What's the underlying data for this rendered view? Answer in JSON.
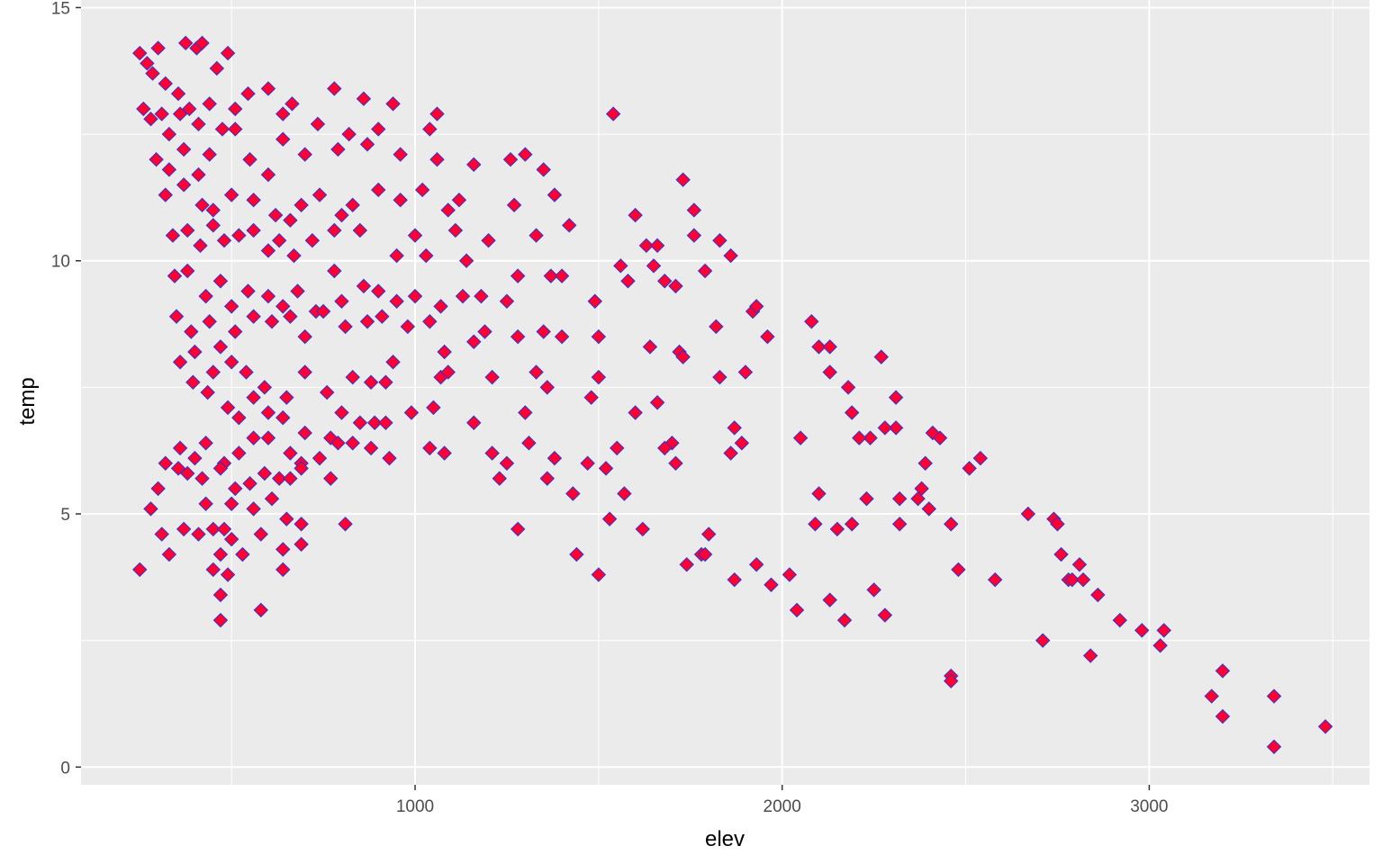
{
  "chart_data": {
    "type": "scatter",
    "title": "",
    "xlabel": "elev",
    "ylabel": "temp",
    "xlim": [
      90,
      3600
    ],
    "ylim": [
      -0.35,
      15.15
    ],
    "x_ticks": [
      1000,
      2000,
      3000
    ],
    "x_tick_labels": [
      "1000",
      "2000",
      "3000"
    ],
    "y_ticks": [
      0,
      5,
      10,
      15
    ],
    "y_tick_labels": [
      "0",
      "5",
      "10",
      "15"
    ],
    "grid": true,
    "legend": "none",
    "colors": {
      "panel": "#ebebeb",
      "grid": "#ffffff",
      "point_fill": "#ff0033",
      "point_stroke": "#3333cc",
      "tick": "#333333"
    },
    "marker": "diamond",
    "points": [
      [
        250,
        14.1
      ],
      [
        270,
        13.9
      ],
      [
        285,
        13.7
      ],
      [
        300,
        14.2
      ],
      [
        320,
        13.5
      ],
      [
        355,
        13.3
      ],
      [
        375,
        14.3
      ],
      [
        405,
        14.2
      ],
      [
        420,
        14.3
      ],
      [
        460,
        13.8
      ],
      [
        490,
        14.1
      ],
      [
        260,
        13.0
      ],
      [
        280,
        12.8
      ],
      [
        310,
        12.9
      ],
      [
        330,
        12.5
      ],
      [
        360,
        12.9
      ],
      [
        385,
        13.0
      ],
      [
        410,
        12.7
      ],
      [
        440,
        13.1
      ],
      [
        475,
        12.6
      ],
      [
        510,
        13.0
      ],
      [
        545,
        13.3
      ],
      [
        600,
        13.4
      ],
      [
        640,
        12.9
      ],
      [
        665,
        13.1
      ],
      [
        780,
        13.4
      ],
      [
        860,
        13.2
      ],
      [
        940,
        13.1
      ],
      [
        1060,
        12.9
      ],
      [
        1540,
        12.9
      ],
      [
        295,
        12.0
      ],
      [
        330,
        11.8
      ],
      [
        370,
        12.2
      ],
      [
        410,
        11.7
      ],
      [
        440,
        12.1
      ],
      [
        510,
        12.6
      ],
      [
        550,
        12.0
      ],
      [
        600,
        11.7
      ],
      [
        640,
        12.4
      ],
      [
        700,
        12.1
      ],
      [
        735,
        12.7
      ],
      [
        790,
        12.2
      ],
      [
        820,
        12.5
      ],
      [
        870,
        12.3
      ],
      [
        900,
        12.6
      ],
      [
        960,
        12.1
      ],
      [
        1040,
        12.6
      ],
      [
        1060,
        12.0
      ],
      [
        1160,
        11.9
      ],
      [
        1260,
        12.0
      ],
      [
        1300,
        12.1
      ],
      [
        1350,
        11.8
      ],
      [
        320,
        11.3
      ],
      [
        370,
        11.5
      ],
      [
        420,
        11.1
      ],
      [
        450,
        11.0
      ],
      [
        500,
        11.3
      ],
      [
        560,
        11.2
      ],
      [
        620,
        10.9
      ],
      [
        660,
        10.8
      ],
      [
        690,
        11.1
      ],
      [
        740,
        11.3
      ],
      [
        800,
        10.9
      ],
      [
        830,
        11.1
      ],
      [
        900,
        11.4
      ],
      [
        960,
        11.2
      ],
      [
        1020,
        11.4
      ],
      [
        1090,
        11.0
      ],
      [
        1120,
        11.2
      ],
      [
        1270,
        11.1
      ],
      [
        1380,
        11.3
      ],
      [
        1600,
        10.9
      ],
      [
        1730,
        11.6
      ],
      [
        1760,
        11.0
      ],
      [
        340,
        10.5
      ],
      [
        380,
        10.6
      ],
      [
        415,
        10.3
      ],
      [
        450,
        10.7
      ],
      [
        480,
        10.4
      ],
      [
        520,
        10.5
      ],
      [
        560,
        10.6
      ],
      [
        600,
        10.2
      ],
      [
        630,
        10.4
      ],
      [
        670,
        10.1
      ],
      [
        720,
        10.4
      ],
      [
        780,
        10.6
      ],
      [
        850,
        10.6
      ],
      [
        950,
        10.1
      ],
      [
        1000,
        10.5
      ],
      [
        1030,
        10.1
      ],
      [
        1110,
        10.6
      ],
      [
        1140,
        10.0
      ],
      [
        1200,
        10.4
      ],
      [
        1330,
        10.5
      ],
      [
        1420,
        10.7
      ],
      [
        1560,
        9.9
      ],
      [
        1630,
        10.3
      ],
      [
        1660,
        10.3
      ],
      [
        1760,
        10.5
      ],
      [
        1830,
        10.4
      ],
      [
        1860,
        10.1
      ],
      [
        345,
        9.7
      ],
      [
        380,
        9.8
      ],
      [
        430,
        9.3
      ],
      [
        470,
        9.6
      ],
      [
        500,
        9.1
      ],
      [
        545,
        9.4
      ],
      [
        600,
        9.3
      ],
      [
        640,
        9.1
      ],
      [
        680,
        9.4
      ],
      [
        730,
        9.0
      ],
      [
        780,
        9.8
      ],
      [
        800,
        9.2
      ],
      [
        860,
        9.5
      ],
      [
        900,
        9.4
      ],
      [
        950,
        9.2
      ],
      [
        1000,
        9.3
      ],
      [
        1070,
        9.1
      ],
      [
        1130,
        9.3
      ],
      [
        1180,
        9.3
      ],
      [
        1250,
        9.2
      ],
      [
        1280,
        9.7
      ],
      [
        1370,
        9.7
      ],
      [
        1400,
        9.7
      ],
      [
        1490,
        9.2
      ],
      [
        1580,
        9.6
      ],
      [
        1650,
        9.9
      ],
      [
        1680,
        9.6
      ],
      [
        1710,
        9.5
      ],
      [
        1790,
        9.8
      ],
      [
        1920,
        9.0
      ],
      [
        1930,
        9.1
      ],
      [
        350,
        8.9
      ],
      [
        390,
        8.6
      ],
      [
        440,
        8.8
      ],
      [
        470,
        8.3
      ],
      [
        510,
        8.6
      ],
      [
        560,
        8.9
      ],
      [
        610,
        8.8
      ],
      [
        660,
        8.9
      ],
      [
        700,
        8.5
      ],
      [
        750,
        9.0
      ],
      [
        810,
        8.7
      ],
      [
        870,
        8.8
      ],
      [
        910,
        8.9
      ],
      [
        980,
        8.7
      ],
      [
        1040,
        8.8
      ],
      [
        1080,
        8.2
      ],
      [
        1160,
        8.4
      ],
      [
        1190,
        8.6
      ],
      [
        1280,
        8.5
      ],
      [
        1350,
        8.6
      ],
      [
        1400,
        8.5
      ],
      [
        1500,
        8.5
      ],
      [
        1640,
        8.3
      ],
      [
        1720,
        8.2
      ],
      [
        1820,
        8.7
      ],
      [
        1960,
        8.5
      ],
      [
        2080,
        8.8
      ],
      [
        2100,
        8.3
      ],
      [
        2130,
        8.3
      ],
      [
        2270,
        8.1
      ],
      [
        360,
        8.0
      ],
      [
        400,
        8.2
      ],
      [
        450,
        7.8
      ],
      [
        500,
        8.0
      ],
      [
        540,
        7.8
      ],
      [
        590,
        7.5
      ],
      [
        650,
        7.3
      ],
      [
        700,
        7.8
      ],
      [
        760,
        7.4
      ],
      [
        830,
        7.7
      ],
      [
        880,
        7.6
      ],
      [
        920,
        7.6
      ],
      [
        940,
        8.0
      ],
      [
        1070,
        7.7
      ],
      [
        1090,
        7.8
      ],
      [
        1210,
        7.7
      ],
      [
        1330,
        7.8
      ],
      [
        1360,
        7.5
      ],
      [
        1500,
        7.7
      ],
      [
        1730,
        8.1
      ],
      [
        1830,
        7.7
      ],
      [
        1900,
        7.8
      ],
      [
        2130,
        7.8
      ],
      [
        2180,
        7.5
      ],
      [
        2310,
        7.3
      ],
      [
        395,
        7.6
      ],
      [
        435,
        7.4
      ],
      [
        490,
        7.1
      ],
      [
        520,
        6.9
      ],
      [
        560,
        7.3
      ],
      [
        600,
        7.0
      ],
      [
        640,
        6.9
      ],
      [
        700,
        6.6
      ],
      [
        770,
        6.5
      ],
      [
        800,
        7.0
      ],
      [
        850,
        6.8
      ],
      [
        890,
        6.8
      ],
      [
        920,
        6.8
      ],
      [
        990,
        7.0
      ],
      [
        1050,
        7.1
      ],
      [
        1160,
        6.8
      ],
      [
        1300,
        7.0
      ],
      [
        1480,
        7.3
      ],
      [
        1600,
        7.0
      ],
      [
        1660,
        7.2
      ],
      [
        1700,
        6.4
      ],
      [
        1870,
        6.7
      ],
      [
        2190,
        7.0
      ],
      [
        2240,
        6.5
      ],
      [
        2310,
        6.7
      ],
      [
        2410,
        6.6
      ],
      [
        2430,
        6.5
      ],
      [
        360,
        6.3
      ],
      [
        400,
        6.1
      ],
      [
        430,
        6.4
      ],
      [
        480,
        6.0
      ],
      [
        520,
        6.2
      ],
      [
        560,
        6.5
      ],
      [
        600,
        6.5
      ],
      [
        660,
        6.2
      ],
      [
        690,
        6.0
      ],
      [
        740,
        6.1
      ],
      [
        790,
        6.4
      ],
      [
        830,
        6.4
      ],
      [
        880,
        6.3
      ],
      [
        930,
        6.1
      ],
      [
        1040,
        6.3
      ],
      [
        1080,
        6.2
      ],
      [
        1210,
        6.2
      ],
      [
        1250,
        6.0
      ],
      [
        1310,
        6.4
      ],
      [
        1380,
        6.1
      ],
      [
        1470,
        6.0
      ],
      [
        1550,
        6.3
      ],
      [
        1680,
        6.3
      ],
      [
        1710,
        6.0
      ],
      [
        1860,
        6.2
      ],
      [
        1890,
        6.4
      ],
      [
        2050,
        6.5
      ],
      [
        2210,
        6.5
      ],
      [
        2280,
        6.7
      ],
      [
        2390,
        6.0
      ],
      [
        2510,
        5.9
      ],
      [
        2540,
        6.1
      ],
      [
        320,
        6.0
      ],
      [
        355,
        5.9
      ],
      [
        380,
        5.8
      ],
      [
        420,
        5.7
      ],
      [
        470,
        5.9
      ],
      [
        510,
        5.5
      ],
      [
        550,
        5.6
      ],
      [
        590,
        5.8
      ],
      [
        630,
        5.7
      ],
      [
        660,
        5.7
      ],
      [
        690,
        5.9
      ],
      [
        770,
        5.7
      ],
      [
        1230,
        5.7
      ],
      [
        1360,
        5.7
      ],
      [
        1430,
        5.4
      ],
      [
        1520,
        5.9
      ],
      [
        1570,
        5.4
      ],
      [
        2100,
        5.4
      ],
      [
        2230,
        5.3
      ],
      [
        2320,
        5.3
      ],
      [
        2370,
        5.3
      ],
      [
        2380,
        5.5
      ],
      [
        280,
        5.1
      ],
      [
        300,
        5.5
      ],
      [
        430,
        5.2
      ],
      [
        500,
        5.2
      ],
      [
        560,
        5.1
      ],
      [
        610,
        5.3
      ],
      [
        650,
        4.9
      ],
      [
        690,
        4.8
      ],
      [
        2190,
        4.8
      ],
      [
        2320,
        4.8
      ],
      [
        2400,
        5.1
      ],
      [
        2460,
        4.8
      ],
      [
        2670,
        5.0
      ],
      [
        2740,
        4.9
      ],
      [
        2750,
        4.8
      ],
      [
        310,
        4.6
      ],
      [
        370,
        4.7
      ],
      [
        410,
        4.6
      ],
      [
        450,
        4.7
      ],
      [
        480,
        4.7
      ],
      [
        500,
        4.5
      ],
      [
        530,
        4.2
      ],
      [
        580,
        4.6
      ],
      [
        640,
        4.3
      ],
      [
        690,
        4.4
      ],
      [
        810,
        4.8
      ],
      [
        1280,
        4.7
      ],
      [
        1440,
        4.2
      ],
      [
        1530,
        4.9
      ],
      [
        1620,
        4.7
      ],
      [
        1800,
        4.6
      ],
      [
        2090,
        4.8
      ],
      [
        2150,
        4.7
      ],
      [
        250,
        3.9
      ],
      [
        330,
        4.2
      ],
      [
        450,
        3.9
      ],
      [
        470,
        4.2
      ],
      [
        490,
        3.8
      ],
      [
        640,
        3.9
      ],
      [
        1500,
        3.8
      ],
      [
        1740,
        4.0
      ],
      [
        1780,
        4.2
      ],
      [
        1790,
        4.2
      ],
      [
        1870,
        3.7
      ],
      [
        1930,
        4.0
      ],
      [
        1970,
        3.6
      ],
      [
        2020,
        3.8
      ],
      [
        2250,
        3.5
      ],
      [
        2480,
        3.9
      ],
      [
        2580,
        3.7
      ],
      [
        2760,
        4.2
      ],
      [
        2780,
        3.7
      ],
      [
        2790,
        3.7
      ],
      [
        2810,
        4.0
      ],
      [
        2820,
        3.7
      ],
      [
        2860,
        3.4
      ],
      [
        470,
        3.4
      ],
      [
        580,
        3.1
      ],
      [
        470,
        2.9
      ],
      [
        2040,
        3.1
      ],
      [
        2130,
        3.3
      ],
      [
        2170,
        2.9
      ],
      [
        2280,
        3.0
      ],
      [
        2710,
        2.5
      ],
      [
        2920,
        2.9
      ],
      [
        2980,
        2.7
      ],
      [
        3040,
        2.7
      ],
      [
        3030,
        2.4
      ],
      [
        2840,
        2.2
      ],
      [
        2460,
        1.8
      ],
      [
        2460,
        1.7
      ],
      [
        3200,
        1.9
      ],
      [
        3170,
        1.4
      ],
      [
        3200,
        1.0
      ],
      [
        3340,
        1.4
      ],
      [
        3340,
        0.4
      ],
      [
        3480,
        0.8
      ]
    ]
  }
}
